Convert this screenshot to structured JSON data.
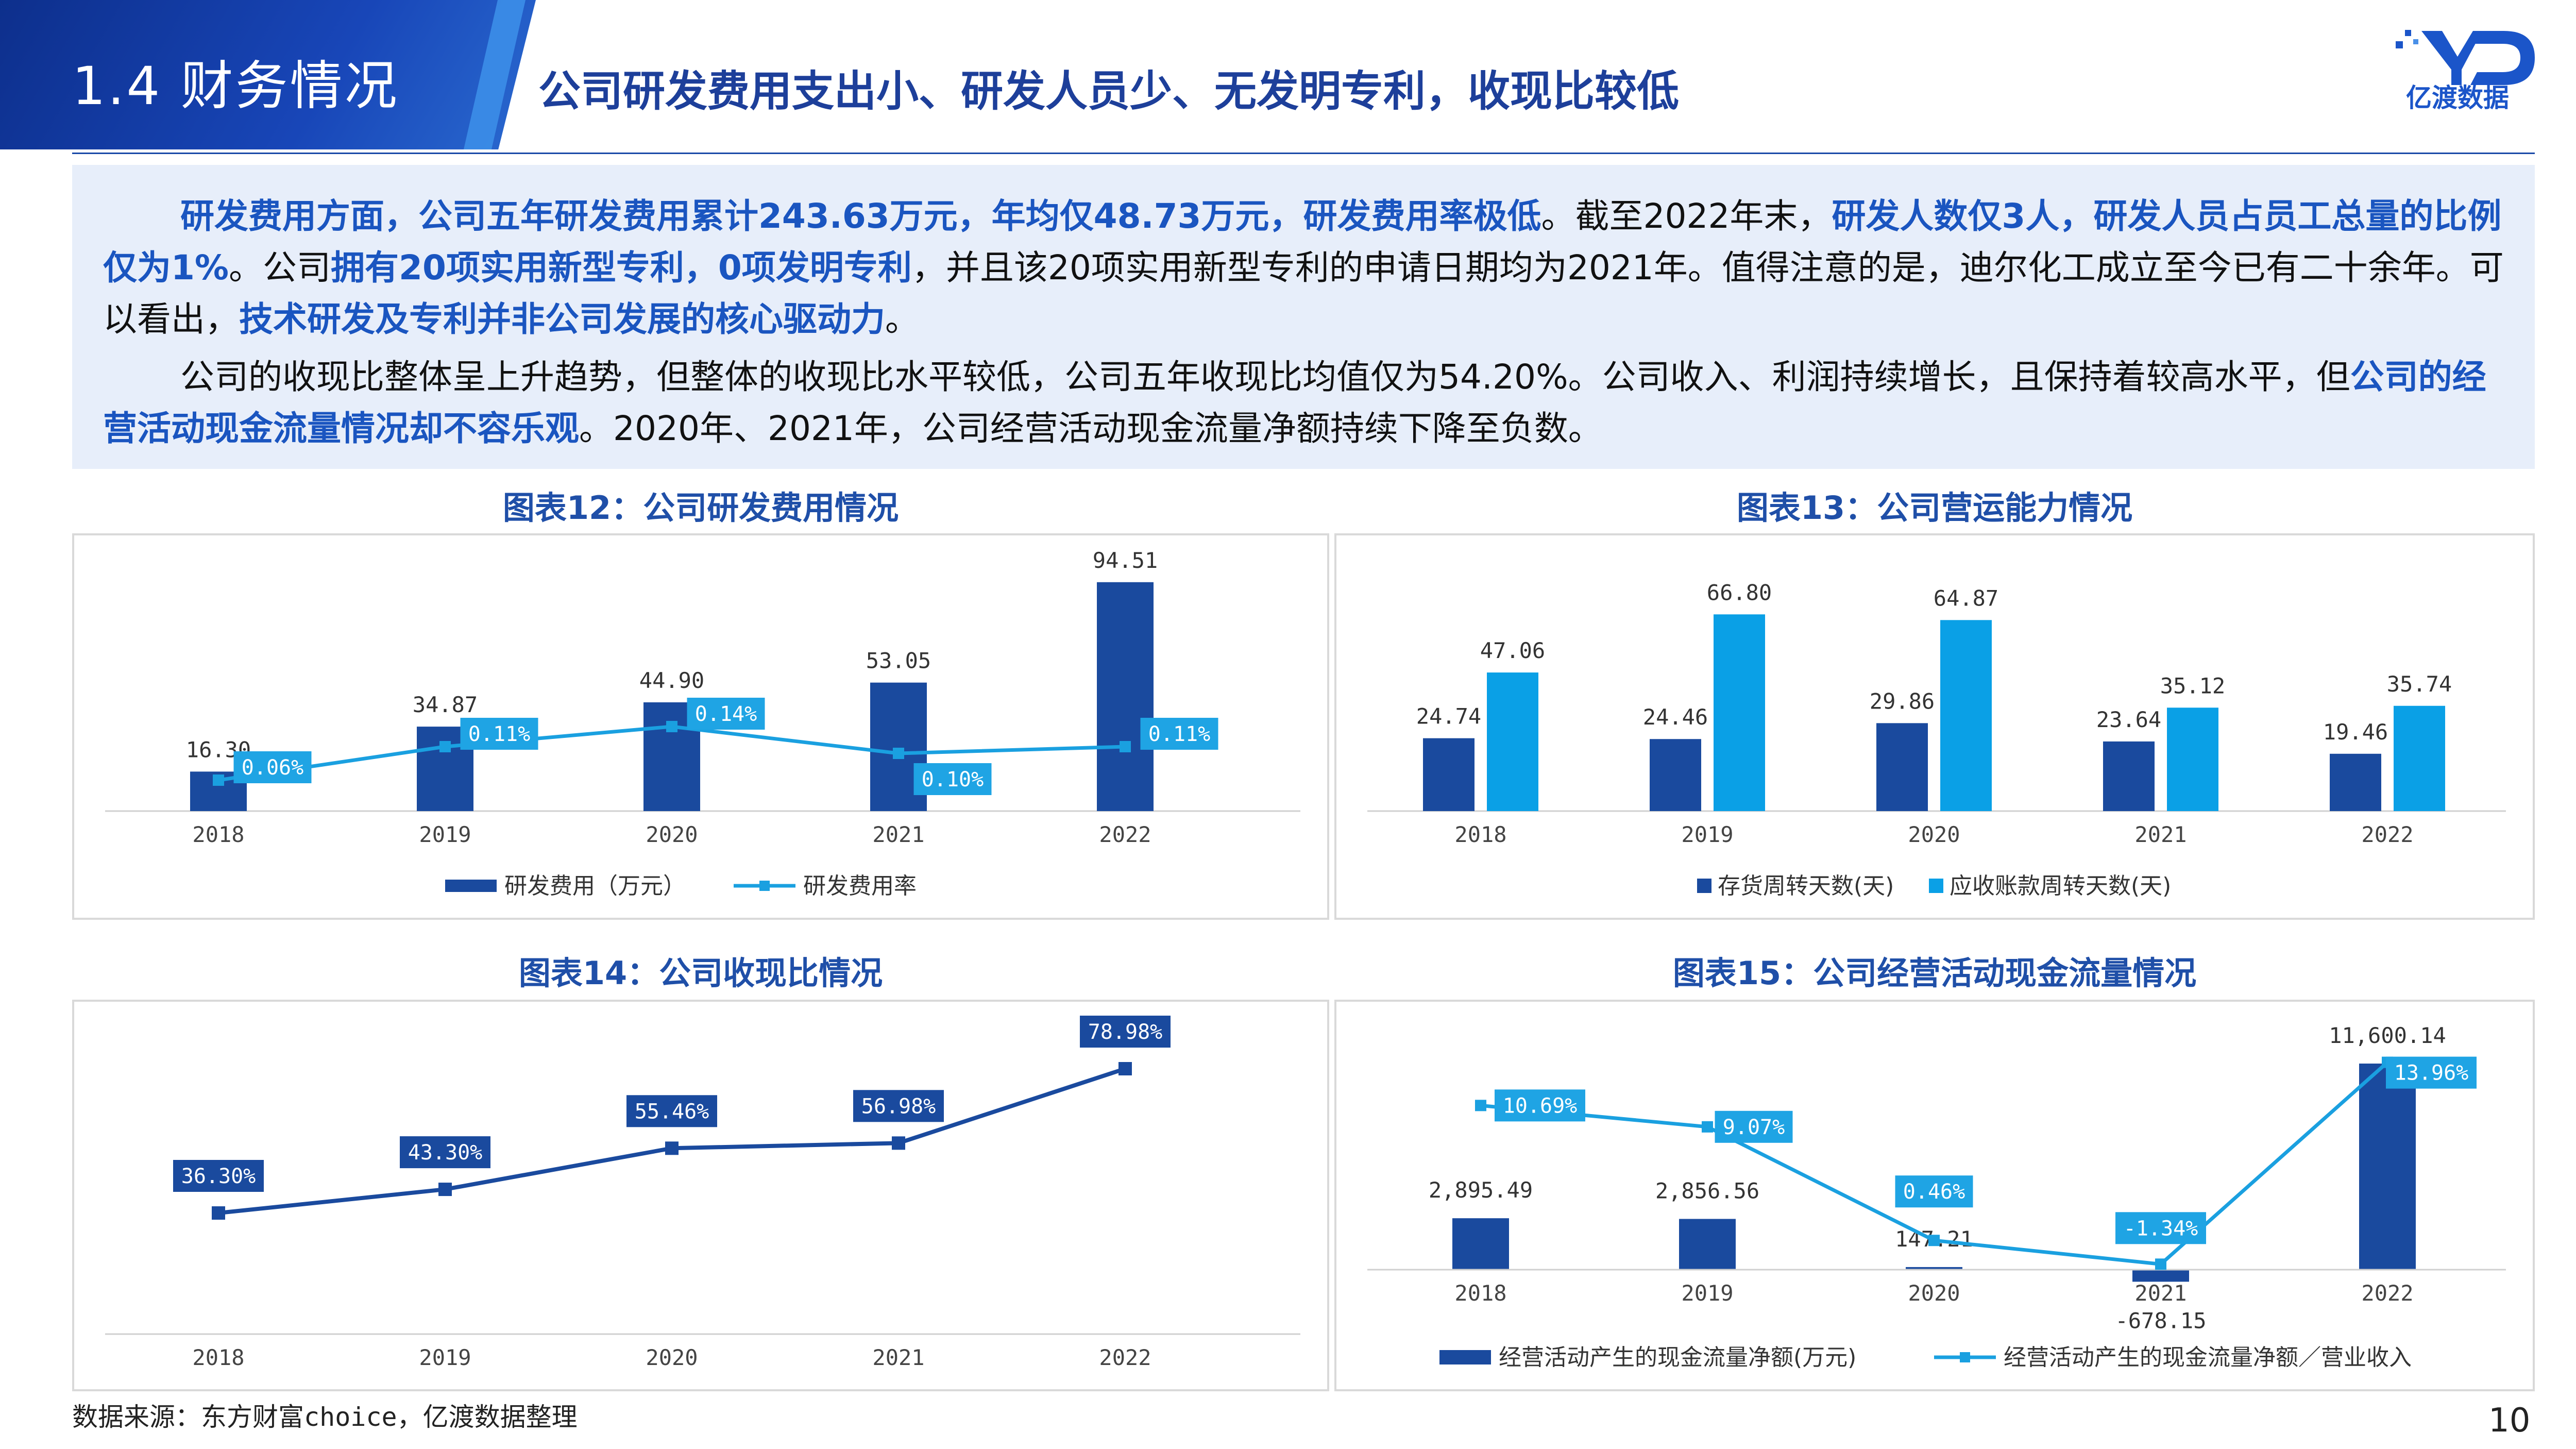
{
  "header": {
    "section": "1.4 财务情况",
    "headline": "公司研发费用支出小、研发人员少、无发明专利，收现比较低",
    "logo_text": "亿渡数据"
  },
  "summary": {
    "p1": [
      {
        "t": "研发费用方面，公司五年研发费用累计243.63万元，年均仅48.73万元，研发费用率极低",
        "hl": true
      },
      {
        "t": "。截至2022年末，",
        "hl": false
      },
      {
        "t": "研发人数仅3人，研发人员占员工总量的比例仅为1%",
        "hl": true
      },
      {
        "t": "。公司",
        "hl": false
      },
      {
        "t": "拥有20项实用新型专利，0项发明专利",
        "hl": true
      },
      {
        "t": "，并且该20项实用新型专利的申请日期均为2021年。值得注意的是，迪尔化工成立至今已有二十余年。可以看出，",
        "hl": false
      },
      {
        "t": "技术研发及专利并非公司发展的核心驱动力",
        "hl": true
      },
      {
        "t": "。",
        "hl": false
      }
    ],
    "p2": [
      {
        "t": "公司的收现比整体呈上升趋势，但整体的收现比水平较低，公司五年收现比均值仅为54.20%。公司收入、利润持续增长，且保持着较高水平，但",
        "hl": false
      },
      {
        "t": "公司的经营活动现金流量情况却不容乐观",
        "hl": true
      },
      {
        "t": "。2020年、2021年，公司经营活动现金流量净额持续下降至负数。",
        "hl": false
      }
    ]
  },
  "chart_data": [
    {
      "type": "bar+line",
      "title": "图表12：公司研发费用情况",
      "categories": [
        "2018",
        "2019",
        "2020",
        "2021",
        "2022"
      ],
      "series": [
        {
          "name": "研发费用（万元）",
          "kind": "bar",
          "values": [
            16.3,
            34.87,
            44.9,
            53.05,
            94.51
          ],
          "labels": [
            "16.30",
            "34.87",
            "44.90",
            "53.05",
            "94.51"
          ],
          "color": "#1a4a9e"
        },
        {
          "name": "研发费用率",
          "kind": "line",
          "values": [
            0.06,
            0.11,
            0.14,
            0.1,
            0.11
          ],
          "labels": [
            "0.06%",
            "0.11%",
            "0.14%",
            "0.10%",
            "0.11%"
          ],
          "color": "#1aa0e0"
        }
      ],
      "grid": false,
      "legend": "bottom"
    },
    {
      "type": "bar",
      "title": "图表13：公司营运能力情况",
      "categories": [
        "2018",
        "2019",
        "2020",
        "2021",
        "2022"
      ],
      "series": [
        {
          "name": "存货周转天数(天)",
          "values": [
            24.74,
            24.46,
            29.86,
            23.64,
            19.46
          ],
          "labels": [
            "24.74",
            "24.46",
            "29.86",
            "23.64",
            "19.46"
          ],
          "color": "#1a4a9e"
        },
        {
          "name": "应收账款周转天数(天)",
          "values": [
            47.06,
            66.8,
            64.87,
            35.12,
            35.74
          ],
          "labels": [
            "47.06",
            "66.80",
            "64.87",
            "35.12",
            "35.74"
          ],
          "color": "#0aa0e6"
        }
      ],
      "grid": false,
      "legend": "bottom"
    },
    {
      "type": "line",
      "title": "图表14：公司收现比情况",
      "categories": [
        "2018",
        "2019",
        "2020",
        "2021",
        "2022"
      ],
      "series": [
        {
          "name": "",
          "values": [
            36.3,
            43.3,
            55.46,
            56.98,
            78.98
          ],
          "labels": [
            "36.30%",
            "43.30%",
            "55.46%",
            "56.98%",
            "78.98%"
          ],
          "color": "#1a4a9e"
        }
      ],
      "grid": false,
      "legend": "none"
    },
    {
      "type": "bar+line",
      "title": "图表15：公司经营活动现金流量情况",
      "categories": [
        "2018",
        "2019",
        "2020",
        "2021",
        "2022"
      ],
      "series": [
        {
          "name": "经营活动产生的现金流量净额(万元)",
          "kind": "bar",
          "values": [
            2895.49,
            2856.56,
            147.21,
            -678.15,
            11600.14
          ],
          "labels": [
            "2,895.49",
            "2,856.56",
            "147.21",
            "-678.15",
            "11,600.14"
          ],
          "color": "#1a4a9e"
        },
        {
          "name": "经营活动产生的现金流量净额／营业收入",
          "kind": "line",
          "values": [
            10.69,
            9.07,
            0.46,
            -1.34,
            13.96
          ],
          "labels": [
            "10.69%",
            "9.07%",
            "0.46%",
            "-1.34%",
            "13.96%"
          ],
          "color": "#1aa0e0"
        }
      ],
      "grid": false,
      "legend": "bottom"
    }
  ],
  "footer": {
    "source": "数据来源：东方财富choice，亿渡数据整理",
    "page": "10"
  }
}
